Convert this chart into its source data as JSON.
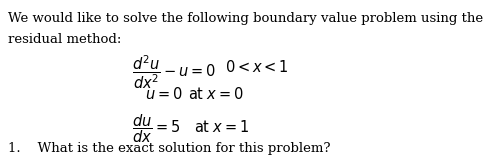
{
  "bg_color": "#ffffff",
  "text_color": "#000000",
  "intro_line1": "We would like to solve the following boundary value problem using the weighted",
  "intro_line2": "residual method:",
  "eq1_lhs": "$\\dfrac{d^2u}{dx^2} - u = 0$",
  "eq1_rhs": "$0 < x < 1$",
  "eq2_lhs": "$u = 0$",
  "eq2_rhs": "$\\mathrm{at}\\; x = 0$",
  "eq3_lhs": "$\\dfrac{du}{dx} = 5$",
  "eq3_rhs": "$\\mathrm{at}\\; x = 1$",
  "question": "1.    What is the exact solution for this problem?",
  "fontsize_text": 9.5,
  "fontsize_math": 10.5
}
